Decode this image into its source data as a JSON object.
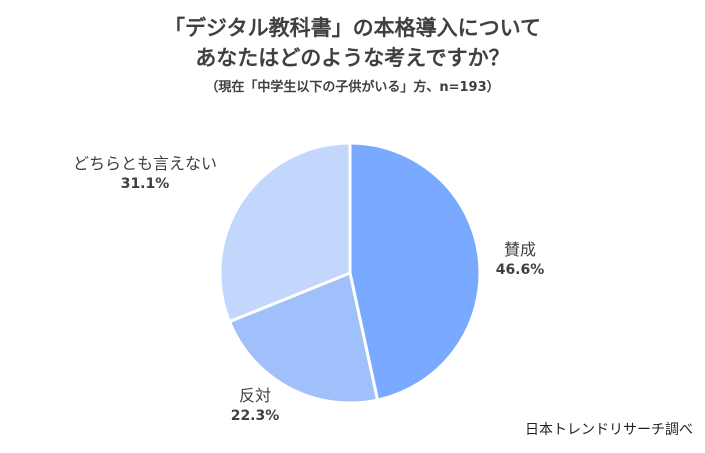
{
  "title_line1": "「デジタル教科書」の本格導入について",
  "title_line2": "あなたはどのような考えですか？",
  "subtitle": "（現在「中学生以下の子供がいる」方、n=193）",
  "credit": "日本トレンドリサーチ調べ",
  "chart_data": {
    "type": "pie",
    "title": "「デジタル教科書」の本格導入について あなたはどのような考えですか？",
    "subtitle": "（現在「中学生以下の子供がいる」方、n=193）",
    "slices": [
      {
        "label": "賛成",
        "value": 46.6,
        "value_label": "46.6%",
        "color": "#7aaaff"
      },
      {
        "label": "反対",
        "value": 22.3,
        "value_label": "22.3%",
        "color": "#9fc0fb"
      },
      {
        "label": "どちらとも言えない",
        "value": 31.1,
        "value_label": "31.1%",
        "color": "#c3d7fc"
      }
    ],
    "start_angle": "12 o'clock",
    "direction": "clockwise"
  }
}
